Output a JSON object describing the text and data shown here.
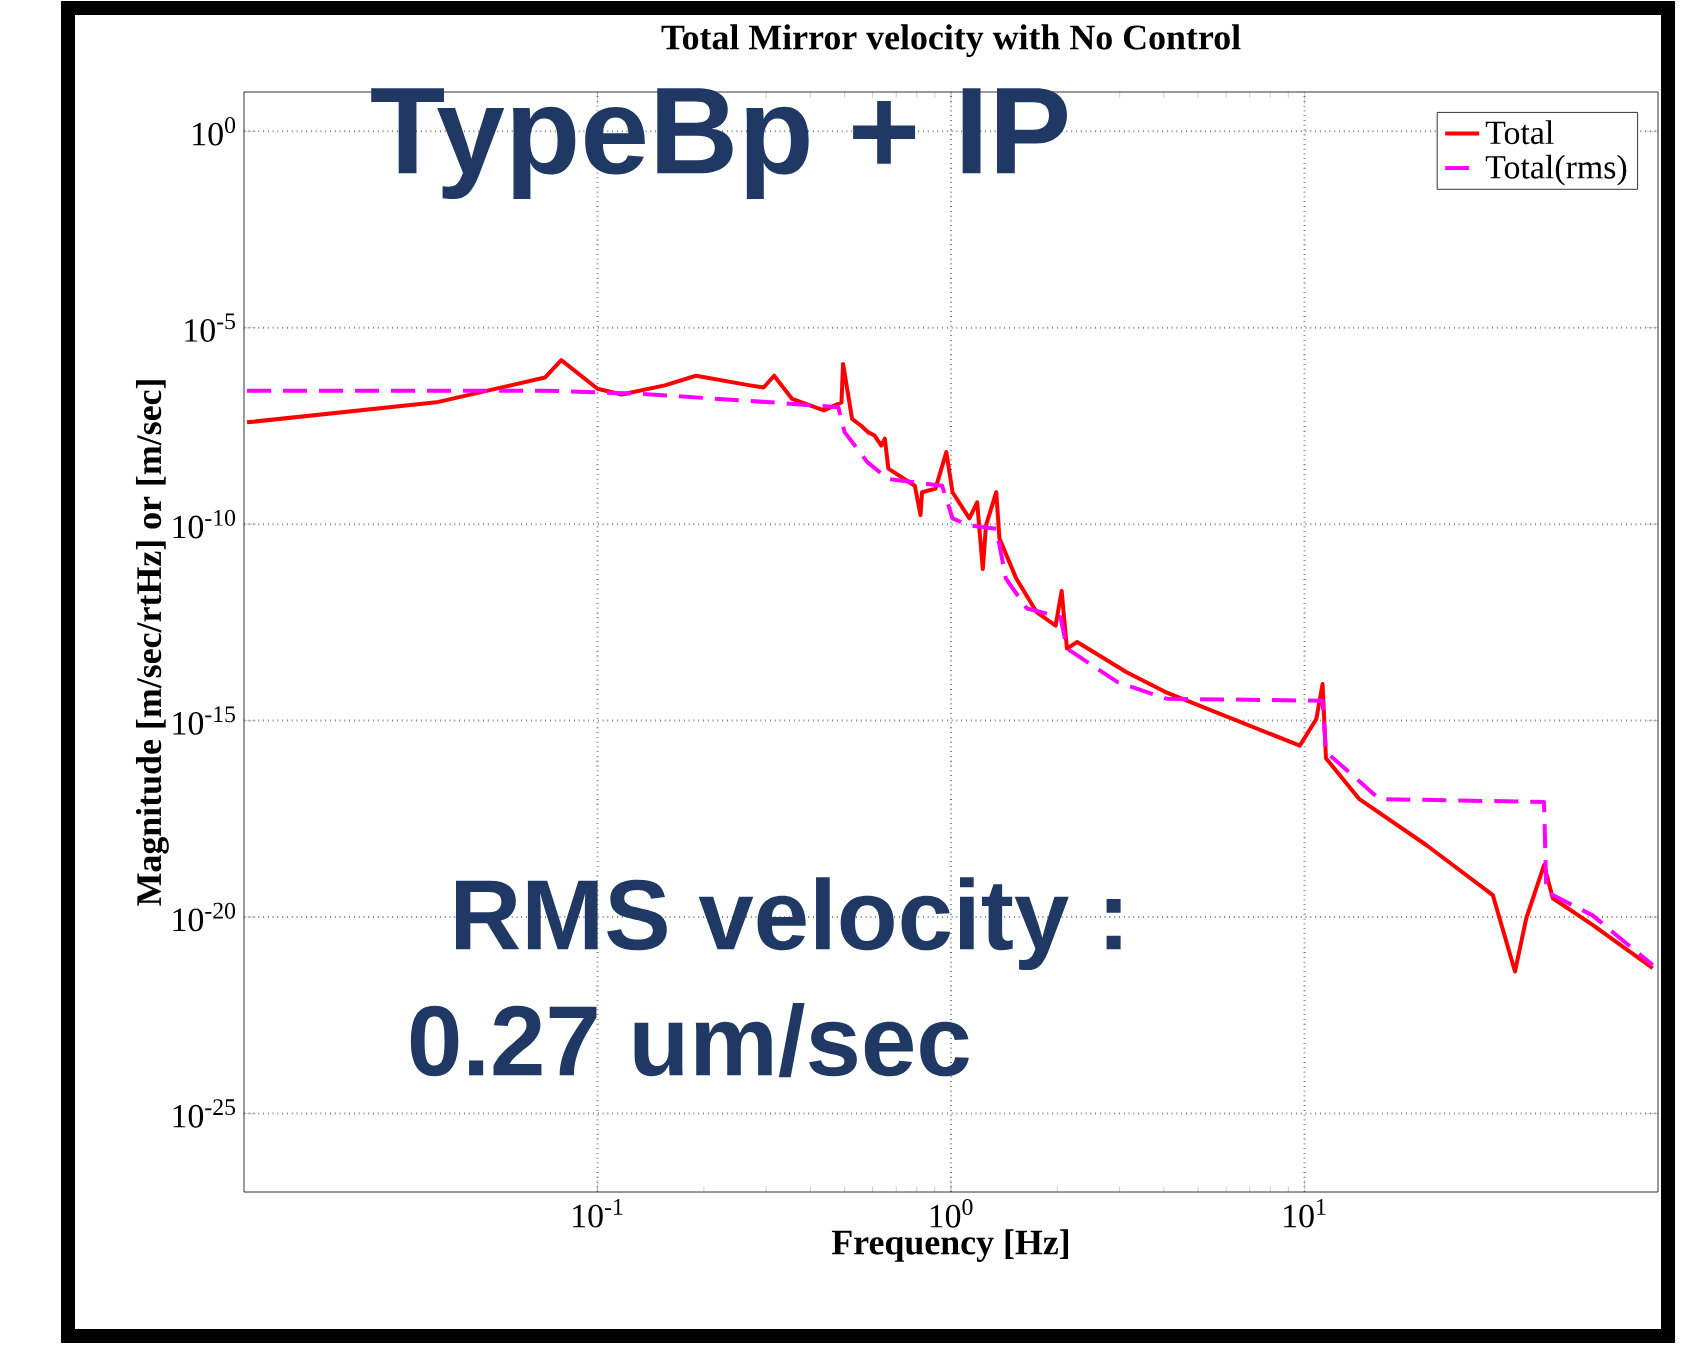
{
  "chart_data": {
    "type": "line",
    "title": "Total Mirror velocity with No Control",
    "xlabel": "Frequency [Hz]",
    "ylabel": "Magnitude [m/sec/rtHz] or [m/sec]",
    "log": "xy",
    "grid": true,
    "legend": "top right",
    "xlim": [
      0.01,
      100
    ],
    "ylim": [
      1e-27,
      10
    ],
    "xticks": [
      {
        "value": 0.1,
        "label": "10$^{-1}$"
      },
      {
        "value": 1,
        "label": "10$^{0}$"
      },
      {
        "value": 10,
        "label": "10$^{1}$"
      }
    ],
    "yticks": [
      {
        "value": 1e-25,
        "label": "10$^{-25}$"
      },
      {
        "value": 1e-20,
        "label": "10$^{-20}$"
      },
      {
        "value": 1e-15,
        "label": "10$^{-15}$"
      },
      {
        "value": 1e-10,
        "label": "10$^{-10}$"
      },
      {
        "value": 1e-05,
        "label": "10$^{-5}$"
      },
      {
        "value": 1,
        "label": "10$^{0}$"
      }
    ],
    "annotations": [
      "TypeBp + IP",
      "RMS velocity :",
      "0.27 um/sec"
    ],
    "series": [
      {
        "name": "Total",
        "color": "#ff0000",
        "line_style": "solid",
        "x": [
          0.0102,
          0.035,
          0.071,
          0.079,
          0.1,
          0.117,
          0.155,
          0.19,
          0.27,
          0.295,
          0.316,
          0.355,
          0.437,
          0.49,
          0.495,
          0.525,
          0.557,
          0.582,
          0.608,
          0.635,
          0.65,
          0.665,
          0.79,
          0.82,
          0.828,
          0.904,
          0.97,
          1.01,
          1.127,
          1.186,
          1.23,
          1.256,
          1.343,
          1.371,
          1.53,
          1.746,
          1.977,
          2.056,
          2.128,
          2.275,
          3.14,
          4.03,
          9.7,
          10.8,
          11.25,
          11.5,
          14.3,
          22.1,
          34.1,
          39.4,
          42.4,
          47.6,
          50.4,
          65.3,
          96.6
        ],
        "values": [
          3.9e-08,
          1.26e-07,
          5.4e-07,
          1.5e-06,
          2.8e-07,
          2e-07,
          3.4e-07,
          6e-07,
          3.4e-07,
          3e-07,
          6e-07,
          1.55e-07,
          7.9e-08,
          1.26e-07,
          1.2e-06,
          4.8e-08,
          3.2e-08,
          2.2e-08,
          1.8e-08,
          1e-08,
          1.5e-08,
          2.6e-09,
          9.5e-10,
          1.7e-10,
          6.5e-10,
          8e-10,
          6.8e-09,
          6.5e-10,
          1.4e-10,
          3.6e-10,
          7.2e-12,
          9.3e-11,
          6.5e-10,
          4.3e-11,
          4.1e-12,
          5.8e-13,
          2.6e-13,
          2e-12,
          6.8e-14,
          1e-13,
          1.7e-14,
          5.4e-15,
          2.3e-16,
          1.1e-15,
          8.5e-15,
          1.1e-16,
          1e-17,
          6.8e-19,
          3.6e-20,
          4.1e-22,
          9.3e-21,
          2.1e-19,
          3e-20,
          6.3e-21,
          5e-22
        ]
      },
      {
        "name": "Total(rms)",
        "color": "#ff00ff",
        "line_style": "dashed",
        "x": [
          0.0102,
          0.071,
          0.13,
          0.31,
          0.48,
          0.5,
          0.58,
          0.665,
          0.944,
          1.01,
          1.127,
          1.343,
          1.43,
          1.64,
          2.04,
          2.128,
          2.96,
          4.07,
          11.25,
          11.5,
          16.3,
          47.6,
          48.3,
          65.3,
          96.6
        ],
        "values": [
          2.5e-07,
          2.5e-07,
          2.1e-07,
          1.26e-07,
          9.5e-08,
          2.2e-08,
          3.8e-09,
          1.4e-09,
          9.5e-10,
          1.4e-10,
          9.3e-11,
          7.6e-11,
          4.1e-12,
          7.1e-13,
          4.3e-13,
          6.8e-14,
          9.5e-15,
          3.6e-15,
          3.2e-15,
          1.6e-16,
          1e-17,
          8.5e-18,
          4.4e-20,
          1.1e-20,
          6e-22
        ]
      }
    ]
  }
}
